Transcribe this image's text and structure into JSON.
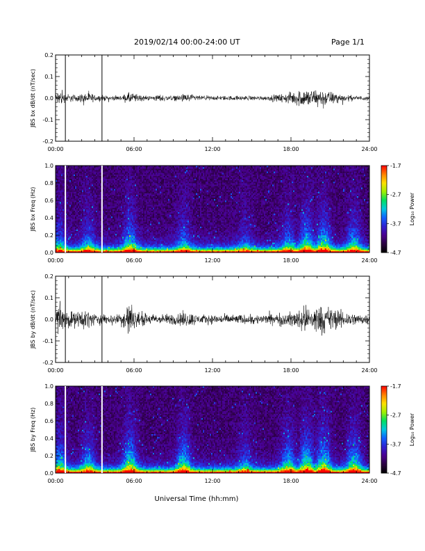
{
  "header": {
    "date_range": "2019/02/14  00:00-24:00 UT",
    "page": "Page 1/1"
  },
  "xaxis_label": "Universal Time (hh:mm)",
  "colors": {
    "colormap": [
      "#000000",
      "#2a0040",
      "#4a0090",
      "#3020d0",
      "#1060ff",
      "#00c8e0",
      "#00e060",
      "#a0f000",
      "#ffe000",
      "#ff8000",
      "#ff0000"
    ],
    "waveform": "#000000"
  },
  "chart_data": [
    {
      "type": "line",
      "ylabel": "JBS bx dB/dt (nT/sec)",
      "xlim": [
        0,
        24
      ],
      "ylim": [
        -0.2,
        0.2
      ],
      "xticks": [
        "00:00",
        "06:00",
        "12:00",
        "18:00",
        "24:00"
      ],
      "yticks": [
        "-0.2",
        "-0.1",
        "0.0",
        "0.1",
        "0.2"
      ],
      "gap_markers_hours": [
        0.75,
        3.55
      ],
      "amplitude_envelope": [
        [
          0,
          0.03
        ],
        [
          0.3,
          0.09
        ],
        [
          0.6,
          0.04
        ],
        [
          1.5,
          0.03
        ],
        [
          2.5,
          0.05
        ],
        [
          3.0,
          0.03
        ],
        [
          4,
          0.02
        ],
        [
          5,
          0.02
        ],
        [
          5.7,
          0.05
        ],
        [
          6,
          0.04
        ],
        [
          7,
          0.02
        ],
        [
          8,
          0.03
        ],
        [
          9,
          0.02
        ],
        [
          10,
          0.04
        ],
        [
          11,
          0.02
        ],
        [
          12,
          0.02
        ],
        [
          13,
          0.02
        ],
        [
          14,
          0.02
        ],
        [
          15,
          0.02
        ],
        [
          16,
          0.02
        ],
        [
          17,
          0.03
        ],
        [
          18,
          0.05
        ],
        [
          18.5,
          0.07
        ],
        [
          19,
          0.08
        ],
        [
          20,
          0.08
        ],
        [
          21,
          0.06
        ],
        [
          22,
          0.03
        ],
        [
          23,
          0.02
        ],
        [
          24,
          0.02
        ]
      ]
    },
    {
      "type": "heatmap",
      "ylabel": "JBS bx Freq (Hz)",
      "colorbar_label": "Log₁₀ Power",
      "colorbar_ticks": [
        "-1.7",
        "-2.7",
        "-3.7",
        "-4.7"
      ],
      "zlim": [
        -4.7,
        -1.7
      ],
      "xlim": [
        0,
        24
      ],
      "ylim": [
        0,
        1.0
      ],
      "xticks": [
        "00:00",
        "06:00",
        "12:00",
        "18:00",
        "24:00"
      ],
      "yticks": [
        "0.0",
        "0.2",
        "0.4",
        "0.6",
        "0.8",
        "1.0"
      ],
      "gap_markers_hours": [
        0.75,
        3.55
      ],
      "activity_bursts": [
        {
          "t": 0.3,
          "level": 0.6
        },
        {
          "t": 2.5,
          "level": 0.6
        },
        {
          "t": 5.7,
          "level": 0.8
        },
        {
          "t": 9.8,
          "level": 0.6
        },
        {
          "t": 14.5,
          "level": 0.4
        },
        {
          "t": 17.8,
          "level": 0.6
        },
        {
          "t": 19.2,
          "level": 0.9
        },
        {
          "t": 20.5,
          "level": 0.9
        },
        {
          "t": 22.8,
          "level": 0.7
        }
      ]
    },
    {
      "type": "line",
      "ylabel": "JBS by dB/dt (nT/sec)",
      "xlim": [
        0,
        24
      ],
      "ylim": [
        -0.2,
        0.2
      ],
      "xticks": [
        "00:00",
        "06:00",
        "12:00",
        "18:00",
        "24:00"
      ],
      "yticks": [
        "-0.2",
        "-0.1",
        "0.0",
        "0.1",
        "0.2"
      ],
      "gap_markers_hours": [
        0.75,
        3.55
      ],
      "amplitude_envelope": [
        [
          0,
          0.05
        ],
        [
          0.3,
          0.19
        ],
        [
          0.6,
          0.08
        ],
        [
          1.5,
          0.07
        ],
        [
          2.5,
          0.08
        ],
        [
          3.0,
          0.05
        ],
        [
          4,
          0.04
        ],
        [
          5,
          0.05
        ],
        [
          5.7,
          0.18
        ],
        [
          6,
          0.07
        ],
        [
          7,
          0.05
        ],
        [
          8,
          0.04
        ],
        [
          9,
          0.05
        ],
        [
          9.9,
          0.07
        ],
        [
          11,
          0.04
        ],
        [
          12,
          0.04
        ],
        [
          13,
          0.04
        ],
        [
          14,
          0.04
        ],
        [
          15,
          0.04
        ],
        [
          16,
          0.04
        ],
        [
          17,
          0.05
        ],
        [
          18,
          0.06
        ],
        [
          18.5,
          0.08
        ],
        [
          19,
          0.11
        ],
        [
          20,
          0.12
        ],
        [
          21,
          0.11
        ],
        [
          22,
          0.07
        ],
        [
          23,
          0.05
        ],
        [
          24,
          0.04
        ]
      ]
    },
    {
      "type": "heatmap",
      "ylabel": "JBS by Freq (Hz)",
      "colorbar_label": "Log₁₀ Power",
      "colorbar_ticks": [
        "-1.7",
        "-2.7",
        "-3.7",
        "-4.7"
      ],
      "zlim": [
        -4.7,
        -1.7
      ],
      "xlim": [
        0,
        24
      ],
      "ylim": [
        0,
        1.0
      ],
      "xticks": [
        "00:00",
        "06:00",
        "12:00",
        "18:00",
        "24:00"
      ],
      "yticks": [
        "0.0",
        "0.2",
        "0.4",
        "0.6",
        "0.8",
        "1.0"
      ],
      "gap_markers_hours": [
        0.75,
        3.55
      ],
      "activity_bursts": [
        {
          "t": 0.3,
          "level": 0.8
        },
        {
          "t": 2.5,
          "level": 0.7
        },
        {
          "t": 5.7,
          "level": 1.0
        },
        {
          "t": 9.8,
          "level": 0.9
        },
        {
          "t": 14.5,
          "level": 0.5
        },
        {
          "t": 17.8,
          "level": 0.8
        },
        {
          "t": 19.2,
          "level": 1.0
        },
        {
          "t": 20.5,
          "level": 1.0
        },
        {
          "t": 22.8,
          "level": 0.9
        }
      ]
    }
  ]
}
